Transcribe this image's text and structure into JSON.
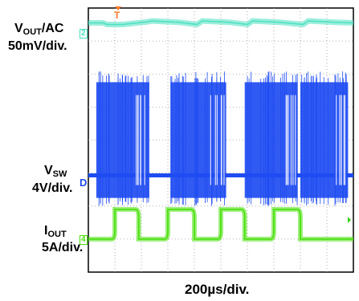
{
  "chart_data": {
    "type": "line",
    "title": "",
    "xlabel": "200µs/div.",
    "x_divisions": 10,
    "y_divisions": 8,
    "grid": true,
    "x": [
      0,
      0.55,
      0.7,
      1.3,
      2.2,
      2.4,
      3.4,
      4.1,
      4.3,
      5.3,
      6.0,
      6.2,
      7.2,
      8.1,
      8.3,
      9.3,
      10.0
    ],
    "series": [
      {
        "label_main": "V",
        "label_sub": "OUT",
        "label_after": "/AC",
        "scale_label": "50mV/div.",
        "channel_marker": "2",
        "color": "#4de0c0",
        "coupling": "AC",
        "values": [
          0,
          0,
          -0.05,
          -0.05,
          0.03,
          0.06,
          0.02,
          -0.05,
          0.06,
          0.02,
          -0.05,
          0.06,
          0.02,
          -0.05,
          0.06,
          0.02,
          0
        ]
      },
      {
        "label_main": "V",
        "label_sub": "SW",
        "label_after": "",
        "scale_label": "4V/div.",
        "channel_marker": "D",
        "color": "#1f4cf2",
        "switching_bursts_div": [
          [
            0.3,
            2.3
          ],
          [
            3.1,
            5.2
          ],
          [
            5.9,
            7.9
          ],
          [
            8.0,
            9.8
          ]
        ],
        "high_level_div": 2.85,
        "low_level_div": 0
      },
      {
        "label_main": "I",
        "label_sub": "OUT",
        "label_after": "",
        "scale_label": "5A/div.",
        "channel_marker": "4",
        "color": "#4ce00f",
        "step_levels_div": {
          "high": 1.25,
          "low": 0
        },
        "high_intervals_div": [
          [
            1.0,
            1.9
          ],
          [
            3.0,
            4.0
          ],
          [
            5.0,
            5.9
          ],
          [
            7.0,
            8.0
          ]
        ]
      }
    ],
    "trigger_marker": "T",
    "trigger_color": "#ff7a2a",
    "trigger_level_marker_color": "#3ad01c"
  }
}
